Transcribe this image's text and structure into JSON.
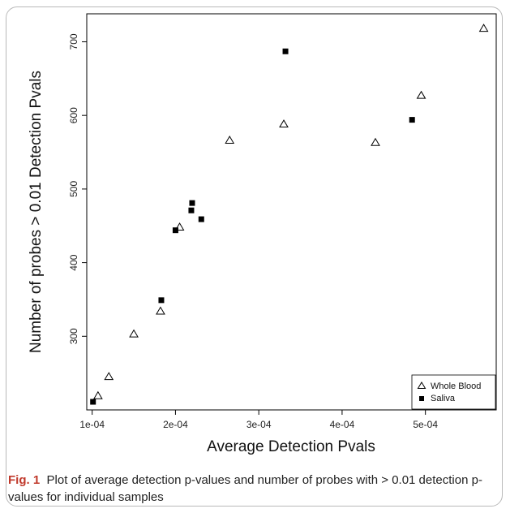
{
  "caption": {
    "label": "Fig. 1",
    "text": "Plot of average detection p-values and number of probes with > 0.01 detection p-values for individual samples"
  },
  "chart_data": {
    "type": "scatter",
    "xlabel": "Average Detection Pvals",
    "ylabel": "Number of probes > 0.01 Detection Pvals",
    "xlim": [
      9.35e-05,
      0.000585
    ],
    "ylim": [
      200,
      738
    ],
    "xticks": [
      0.0001,
      0.0002,
      0.0003,
      0.0004,
      0.0005
    ],
    "xtick_labels": [
      "1e-04",
      "2e-04",
      "3e-04",
      "4e-04",
      "5e-04"
    ],
    "yticks": [
      300,
      400,
      500,
      600,
      700
    ],
    "ytick_labels": [
      "300",
      "400",
      "500",
      "600",
      "700"
    ],
    "grid": false,
    "legend_position": "bottom-right",
    "series": [
      {
        "name": "Whole Blood",
        "marker": "open-triangle",
        "color": "#000000",
        "points": [
          {
            "x": 0.000107,
            "y": 219
          },
          {
            "x": 0.00012,
            "y": 245
          },
          {
            "x": 0.00015,
            "y": 303
          },
          {
            "x": 0.000182,
            "y": 334
          },
          {
            "x": 0.000205,
            "y": 448
          },
          {
            "x": 0.000265,
            "y": 566
          },
          {
            "x": 0.00033,
            "y": 588
          },
          {
            "x": 0.00044,
            "y": 563
          },
          {
            "x": 0.000495,
            "y": 627
          },
          {
            "x": 0.00057,
            "y": 718
          }
        ]
      },
      {
        "name": "Saliva",
        "marker": "filled-square",
        "color": "#000000",
        "points": [
          {
            "x": 0.000101,
            "y": 211
          },
          {
            "x": 0.000183,
            "y": 349
          },
          {
            "x": 0.0002,
            "y": 444
          },
          {
            "x": 0.000219,
            "y": 471
          },
          {
            "x": 0.00022,
            "y": 481
          },
          {
            "x": 0.000231,
            "y": 459
          },
          {
            "x": 0.000332,
            "y": 687
          },
          {
            "x": 0.000484,
            "y": 594
          }
        ]
      }
    ]
  }
}
